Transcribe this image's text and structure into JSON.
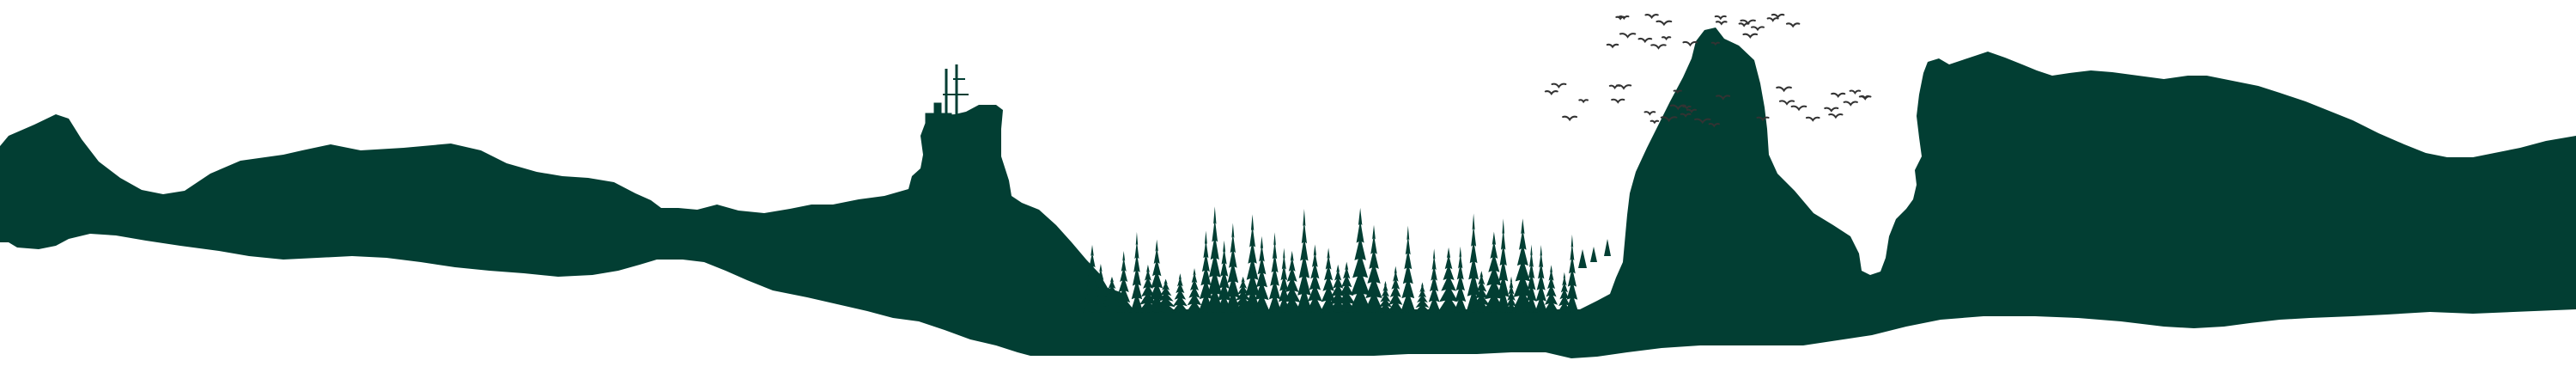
{
  "scene": {
    "background_color": "#ffffff",
    "silhouette_color": "#023e33",
    "bird_color": "#333333",
    "elements": [
      "mountain-range",
      "tower-rock",
      "pine-forest",
      "rock-spire",
      "bird-flock",
      "cliff-plateau"
    ]
  }
}
